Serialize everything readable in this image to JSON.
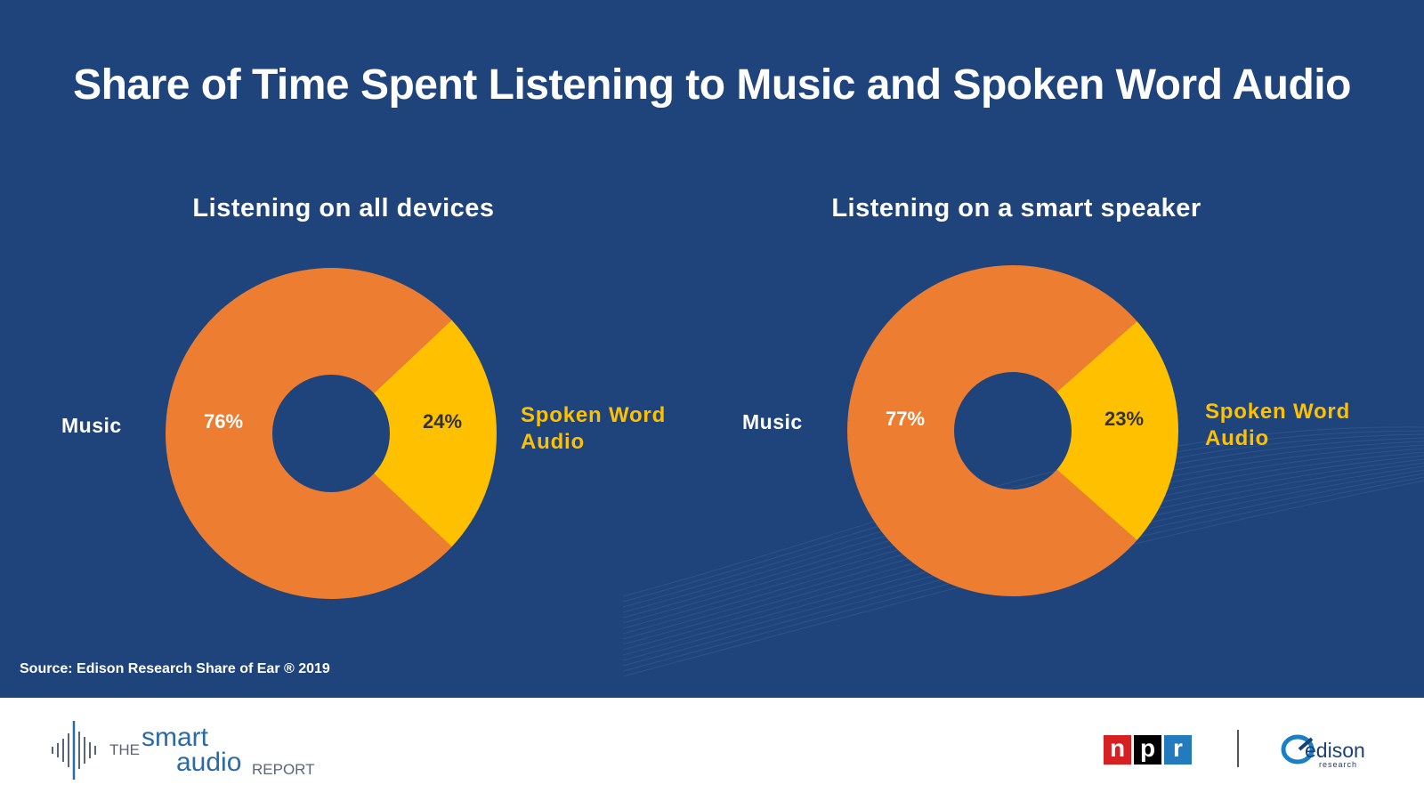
{
  "title": "Share of Time Spent Listening to Music and Spoken Word Audio",
  "colors": {
    "background": "#1f447b",
    "music": "#ed7d31",
    "spoken": "#ffc000",
    "footer": "#ffffff"
  },
  "chart_data": [
    {
      "type": "pie",
      "title": "Listening on all devices",
      "categories": [
        "Music",
        "Spoken Word Audio"
      ],
      "values": [
        76,
        24
      ],
      "labels": [
        "76%",
        "24%"
      ],
      "donut": true
    },
    {
      "type": "pie",
      "title": "Listening on a smart speaker",
      "categories": [
        "Music",
        "Spoken Word Audio"
      ],
      "values": [
        77,
        23
      ],
      "labels": [
        "77%",
        "23%"
      ],
      "donut": true
    }
  ],
  "category_labels": {
    "music": "Music",
    "spoken_line1": "Spoken Word",
    "spoken_line2": "Audio"
  },
  "source": "Source: Edison Research Share of Ear ® 2019",
  "footer": {
    "report_logo": {
      "the": "THE",
      "smart": "smart",
      "audio": "audio",
      "report": "REPORT"
    },
    "npr_letters": [
      "n",
      "p",
      "r"
    ],
    "npr_colors": [
      "#d62021",
      "#000000",
      "#237bbd"
    ],
    "edison_logo": {
      "name": "edison",
      "sub": "research"
    }
  }
}
